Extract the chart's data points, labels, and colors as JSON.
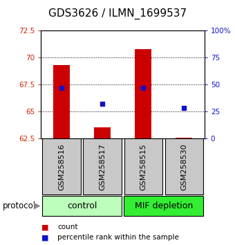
{
  "title": "GDS3626 / ILMN_1699537",
  "samples": [
    "GSM258516",
    "GSM258517",
    "GSM258515",
    "GSM258530"
  ],
  "count_values": [
    69.3,
    63.5,
    70.8,
    62.56
  ],
  "count_base": 62.5,
  "percentile_values": [
    47,
    32,
    47,
    28
  ],
  "ylim_left": [
    62.5,
    72.5
  ],
  "ylim_right": [
    0,
    100
  ],
  "yticks_left": [
    62.5,
    65.0,
    67.5,
    70.0,
    72.5
  ],
  "yticks_right": [
    0,
    25,
    50,
    75,
    100
  ],
  "ytick_labels_left": [
    "62.5",
    "65",
    "67.5",
    "70",
    "72.5"
  ],
  "ytick_labels_right": [
    "0",
    "25",
    "50",
    "75",
    "100%"
  ],
  "bar_color": "#cc0000",
  "dot_color": "#1111cc",
  "group_colors_control": "#bbffbb",
  "group_colors_mif": "#33ee33",
  "group_label_fontsize": 9,
  "sample_label_fontsize": 8,
  "title_fontsize": 11,
  "legend_items": [
    "count",
    "percentile rank within the sample"
  ],
  "protocol_label": "protocol",
  "bg_color": "#ffffff",
  "left_tick_color": "#cc2200",
  "right_tick_color": "#1111cc",
  "sample_bg_color": "#c8c8c8"
}
